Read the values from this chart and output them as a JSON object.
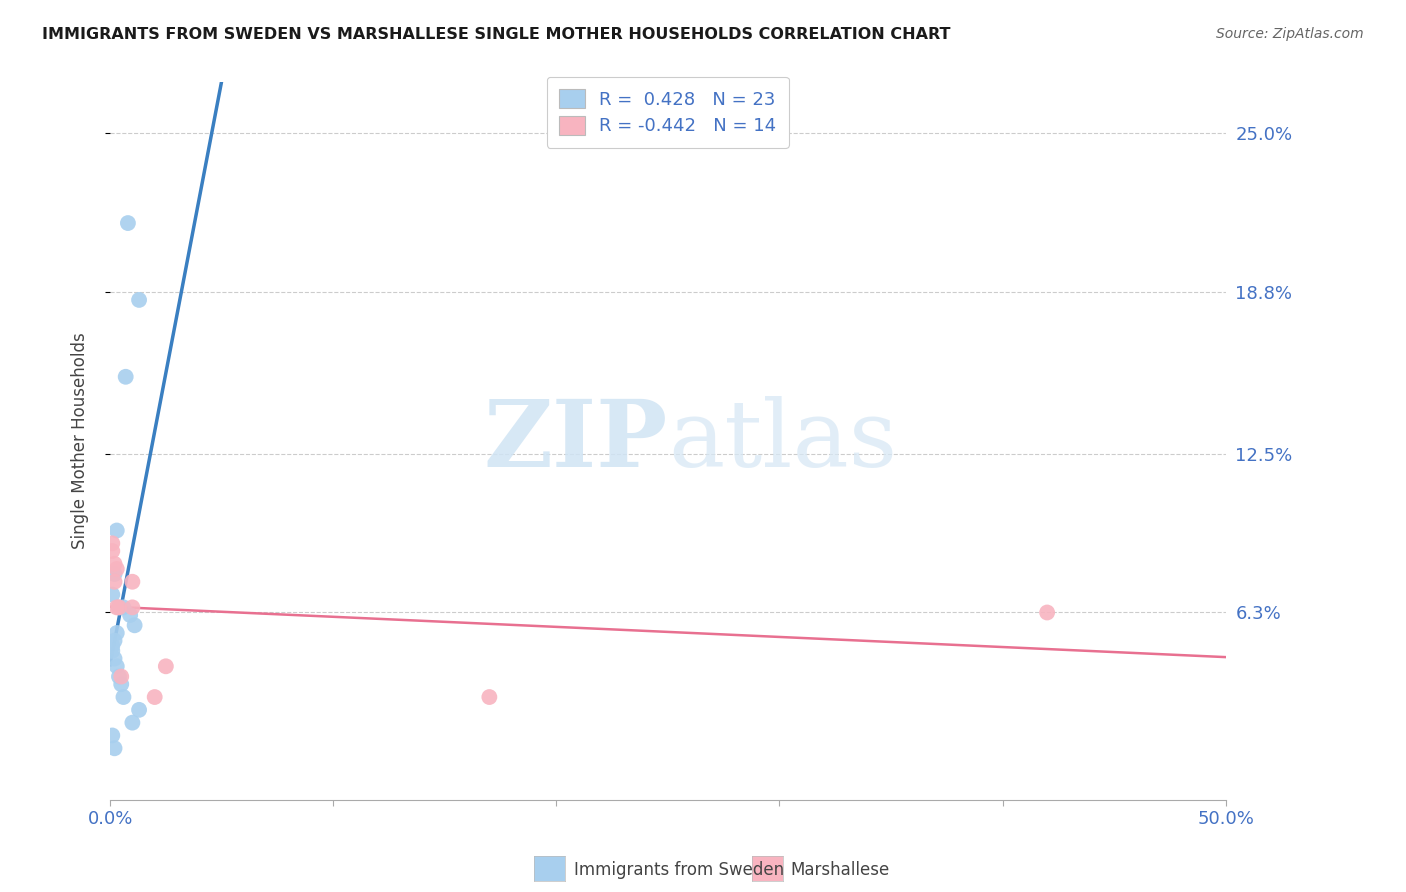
{
  "title": "IMMIGRANTS FROM SWEDEN VS MARSHALLESE SINGLE MOTHER HOUSEHOLDS CORRELATION CHART",
  "source": "Source: ZipAtlas.com",
  "ylabel": "Single Mother Households",
  "ytick_labels": [
    "6.3%",
    "12.5%",
    "18.8%",
    "25.0%"
  ],
  "ytick_values": [
    0.063,
    0.125,
    0.188,
    0.25
  ],
  "xlim": [
    0.0,
    0.5
  ],
  "ylim": [
    -0.01,
    0.27
  ],
  "legend_blue_r": "R =  0.428",
  "legend_blue_n": "N = 23",
  "legend_pink_r": "R = -0.442",
  "legend_pink_n": "N = 14",
  "legend_label_blue": "Immigrants from Sweden",
  "legend_label_pink": "Marshallese",
  "blue_color": "#a8cfee",
  "pink_color": "#f8b4c0",
  "trendline_blue_color": "#3a7fc1",
  "trendline_pink_color": "#e87090",
  "trendline_blue_dash_color": "#99bfe0",
  "watermark_zip": "ZIP",
  "watermark_atlas": "atlas",
  "blue_scatter_x": [
    0.008,
    0.013,
    0.007,
    0.003,
    0.002,
    0.001,
    0.004,
    0.006,
    0.009,
    0.011,
    0.003,
    0.002,
    0.001,
    0.001,
    0.002,
    0.003,
    0.004,
    0.005,
    0.006,
    0.013,
    0.01,
    0.001,
    0.002
  ],
  "blue_scatter_y": [
    0.215,
    0.185,
    0.155,
    0.095,
    0.078,
    0.07,
    0.065,
    0.065,
    0.062,
    0.058,
    0.055,
    0.052,
    0.05,
    0.048,
    0.045,
    0.042,
    0.038,
    0.035,
    0.03,
    0.025,
    0.02,
    0.015,
    0.01
  ],
  "pink_scatter_x": [
    0.001,
    0.002,
    0.003,
    0.002,
    0.003,
    0.004,
    0.01,
    0.01,
    0.025,
    0.17,
    0.42,
    0.001,
    0.005,
    0.02
  ],
  "pink_scatter_y": [
    0.087,
    0.082,
    0.08,
    0.075,
    0.065,
    0.065,
    0.075,
    0.065,
    0.042,
    0.03,
    0.063,
    0.09,
    0.038,
    0.03
  ]
}
